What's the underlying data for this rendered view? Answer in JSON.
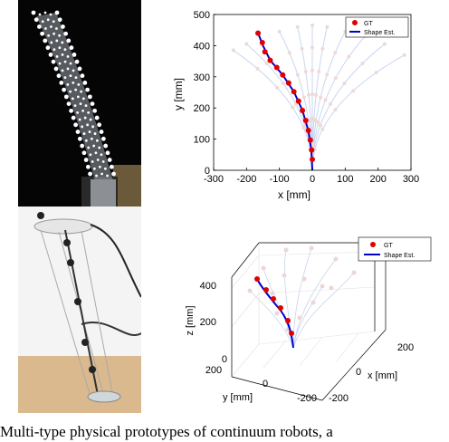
{
  "caption": "Multi-type physical prototypes of continuum robots, a",
  "chart_data": [
    {
      "type": "line",
      "xlabel": "x [mm]",
      "ylabel": "y [mm]",
      "xlim": [
        -300,
        300
      ],
      "ylim": [
        0,
        500
      ],
      "x_ticks": [
        "-300",
        "-200",
        "-100",
        "0",
        "100",
        "200",
        "300"
      ],
      "y_ticks": [
        "0",
        "100",
        "200",
        "300",
        "400",
        "500"
      ],
      "legend": {
        "position": "top-right",
        "entries": [
          "GT",
          "Shape Est."
        ]
      },
      "grid": false,
      "gt_points": [
        {
          "x": 0,
          "y": 35
        },
        {
          "x": -2,
          "y": 65
        },
        {
          "x": -6,
          "y": 97
        },
        {
          "x": -12,
          "y": 128
        },
        {
          "x": -20,
          "y": 160
        },
        {
          "x": -30,
          "y": 192
        },
        {
          "x": -42,
          "y": 222
        },
        {
          "x": -56,
          "y": 252
        },
        {
          "x": -72,
          "y": 280
        },
        {
          "x": -90,
          "y": 306
        },
        {
          "x": -108,
          "y": 330
        },
        {
          "x": -128,
          "y": 353
        },
        {
          "x": -144,
          "y": 380
        },
        {
          "x": -152,
          "y": 410
        },
        {
          "x": -165,
          "y": 440
        }
      ],
      "estimate": [
        {
          "x": 0,
          "y": 0
        },
        {
          "x": -3,
          "y": 65
        },
        {
          "x": -12,
          "y": 128
        },
        {
          "x": -30,
          "y": 192
        },
        {
          "x": -56,
          "y": 252
        },
        {
          "x": -90,
          "y": 306
        },
        {
          "x": -128,
          "y": 353
        },
        {
          "x": -150,
          "y": 400
        },
        {
          "x": -165,
          "y": 440
        }
      ],
      "background_tips": [
        {
          "x": -240,
          "y": 385
        },
        {
          "x": -200,
          "y": 405
        },
        {
          "x": -100,
          "y": 445
        },
        {
          "x": -45,
          "y": 460
        },
        {
          "x": 0,
          "y": 465
        },
        {
          "x": 45,
          "y": 460
        },
        {
          "x": 100,
          "y": 445
        },
        {
          "x": 160,
          "y": 430
        },
        {
          "x": 220,
          "y": 405
        },
        {
          "x": 280,
          "y": 370
        }
      ]
    },
    {
      "type": "scatter",
      "xlabel": "x [mm]",
      "ylabel": "y [mm]",
      "zlabel": "z [mm]",
      "z_ticks": [
        "0",
        "200",
        "400"
      ],
      "x_ticks": [
        "200",
        "0",
        "-200"
      ],
      "y_ticks": [
        "200",
        "0",
        "-200"
      ],
      "legend": {
        "position": "top-right",
        "entries": [
          "GT",
          "Shape Est."
        ]
      },
      "grid": true
    }
  ]
}
